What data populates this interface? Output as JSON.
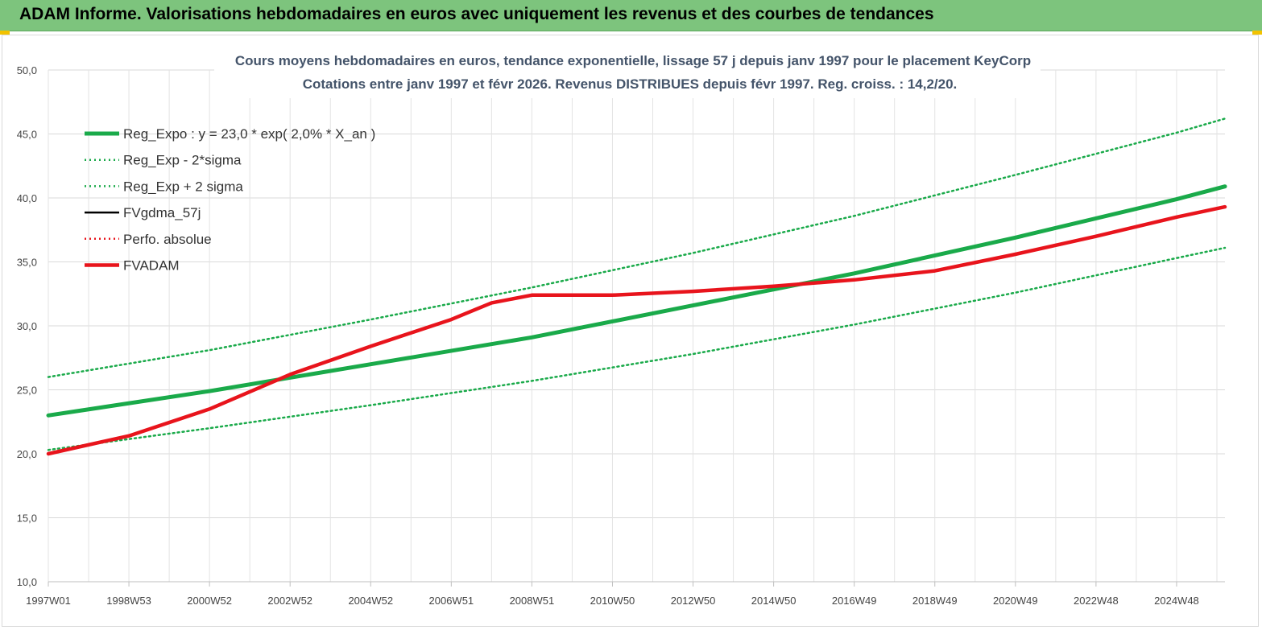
{
  "header": {
    "title": "ADAM Informe. Valorisations hebdomadaires en euros avec uniquement les revenus et des courbes de tendances"
  },
  "colors": {
    "banner": "#7dc47d",
    "accent": "#f2c200",
    "green": "#1aaa4a",
    "red": "#e8141c",
    "black": "#000000"
  },
  "chart_data": {
    "type": "line",
    "title": "Cours moyens hebdomadaires en euros, tendance exponentielle, lissage 57 j depuis janv 1997 pour le placement KeyCorp",
    "subtitle": "Cotations entre janv 1997 et févr 2026. Revenus DISTRIBUES depuis févr 1997. Reg. croiss. : 14,2/20.",
    "xlabel": "",
    "ylabel": "",
    "ylim": [
      10,
      50
    ],
    "xlim": [
      1997.0,
      2026.2
    ],
    "yticks": [
      "10,0",
      "15,0",
      "20,0",
      "25,0",
      "30,0",
      "35,0",
      "40,0",
      "45,0",
      "50,0"
    ],
    "xticks": [
      {
        "label": "1997W01",
        "x": 1997.0
      },
      {
        "label": "1998W53",
        "x": 1999.0
      },
      {
        "label": "2000W52",
        "x": 2001.0
      },
      {
        "label": "2002W52",
        "x": 2003.0
      },
      {
        "label": "2004W52",
        "x": 2005.0
      },
      {
        "label": "2006W51",
        "x": 2007.0
      },
      {
        "label": "2008W51",
        "x": 2009.0
      },
      {
        "label": "2010W50",
        "x": 2011.0
      },
      {
        "label": "2012W50",
        "x": 2013.0
      },
      {
        "label": "2014W50",
        "x": 2015.0
      },
      {
        "label": "2016W49",
        "x": 2017.0
      },
      {
        "label": "2018W49",
        "x": 2019.0
      },
      {
        "label": "2020W49",
        "x": 2021.0
      },
      {
        "label": "2022W48",
        "x": 2023.0
      },
      {
        "label": "2024W48",
        "x": 2025.0
      }
    ],
    "grid": true,
    "legend_position": "top-left",
    "series": [
      {
        "name": "Reg_Expo : y = 23,0 * exp( 2,0% *  X_an )",
        "color": "#1aaa4a",
        "style": "solid-thick",
        "x": [
          1997.0,
          2001.0,
          2005.0,
          2009.0,
          2013.0,
          2017.0,
          2021.0,
          2025.0,
          2026.2
        ],
        "y": [
          23.0,
          24.9,
          27.0,
          29.1,
          31.6,
          34.1,
          36.9,
          39.9,
          40.9
        ]
      },
      {
        "name": "Reg_Exp - 2*sigma",
        "color": "#1aaa4a",
        "style": "dotted",
        "x": [
          1997.0,
          2001.0,
          2005.0,
          2009.0,
          2013.0,
          2017.0,
          2021.0,
          2025.0,
          2026.2
        ],
        "y": [
          20.3,
          22.0,
          23.8,
          25.7,
          27.8,
          30.1,
          32.6,
          35.3,
          36.1
        ]
      },
      {
        "name": "Reg_Exp + 2 sigma",
        "color": "#1aaa4a",
        "style": "dotted",
        "x": [
          1997.0,
          2001.0,
          2005.0,
          2009.0,
          2013.0,
          2017.0,
          2021.0,
          2025.0,
          2026.2
        ],
        "y": [
          26.0,
          28.1,
          30.5,
          33.0,
          35.7,
          38.6,
          41.8,
          45.1,
          46.2
        ]
      },
      {
        "name": "FVgdma_57j",
        "color": "#000000",
        "style": "solid",
        "x": [],
        "y": []
      },
      {
        "name": "Perfo. absolue",
        "color": "#e8141c",
        "style": "dotted",
        "x": [],
        "y": []
      },
      {
        "name": "FVADAM",
        "color": "#e8141c",
        "style": "solid-thick",
        "x": [
          1997.0,
          1999.0,
          2001.0,
          2003.0,
          2005.0,
          2007.0,
          2008.0,
          2009.0,
          2011.0,
          2013.0,
          2015.0,
          2017.0,
          2019.0,
          2021.0,
          2023.0,
          2025.0,
          2026.2
        ],
        "y": [
          20.0,
          21.4,
          23.5,
          26.2,
          28.4,
          30.5,
          31.8,
          32.4,
          32.4,
          32.7,
          33.1,
          33.6,
          34.3,
          35.6,
          37.0,
          38.5,
          39.3
        ]
      }
    ]
  }
}
